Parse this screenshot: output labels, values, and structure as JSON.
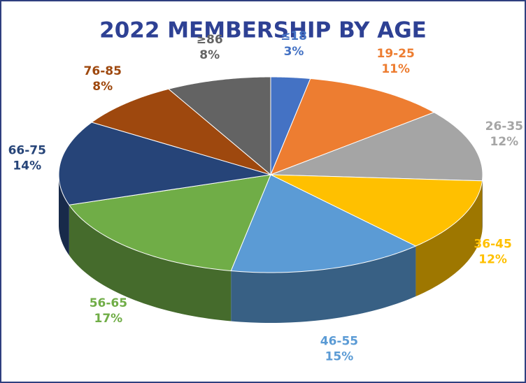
{
  "chart_data": {
    "type": "pie3d",
    "title": "2022 MEMBERSHIP BY AGE",
    "categories": [
      "≤18",
      "19-25",
      "26-35",
      "36-45",
      "46-55",
      "56-65",
      "66-75",
      "76-85",
      "≥86"
    ],
    "values": [
      3,
      11,
      12,
      12,
      15,
      17,
      14,
      8,
      8
    ],
    "value_labels": [
      "3%",
      "11%",
      "12%",
      "12%",
      "15%",
      "17%",
      "14%",
      "8%",
      "8%"
    ],
    "colors": [
      "#4472c4",
      "#ed7d31",
      "#a5a5a5",
      "#ffc000",
      "#5b9bd5",
      "#70ad47",
      "#264478",
      "#9e480e",
      "#636363"
    ]
  }
}
